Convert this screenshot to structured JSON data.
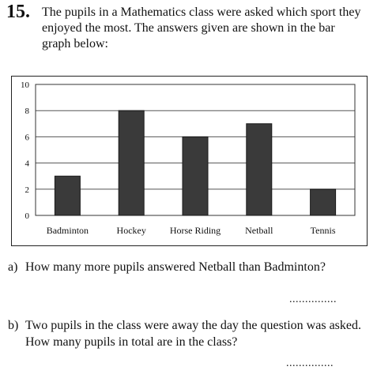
{
  "question": {
    "number": "15.",
    "intro": "The pupils in a Mathematics class were asked which sport they enjoyed the most. The answers given are shown in the bar graph below:"
  },
  "chart_data": {
    "type": "bar",
    "title": "",
    "xlabel": "",
    "ylabel": "",
    "categories": [
      "Badminton",
      "Hockey",
      "Horse Riding",
      "Netball",
      "Tennis"
    ],
    "values": [
      3,
      8,
      6,
      7,
      2
    ],
    "ylim": [
      0,
      10
    ],
    "yticks": [
      0,
      2,
      4,
      6,
      8,
      10
    ],
    "grid": true,
    "bar_color": "#3a3a3a"
  },
  "parts": [
    {
      "label": "a)",
      "text": "How many more pupils answered Netball than Badminton?",
      "answer_line": "..............."
    },
    {
      "label": "b)",
      "text": "Two pupils in the class were away the day the question was asked. How many pupils in total are in the class?",
      "answer_line": "..............."
    }
  ]
}
